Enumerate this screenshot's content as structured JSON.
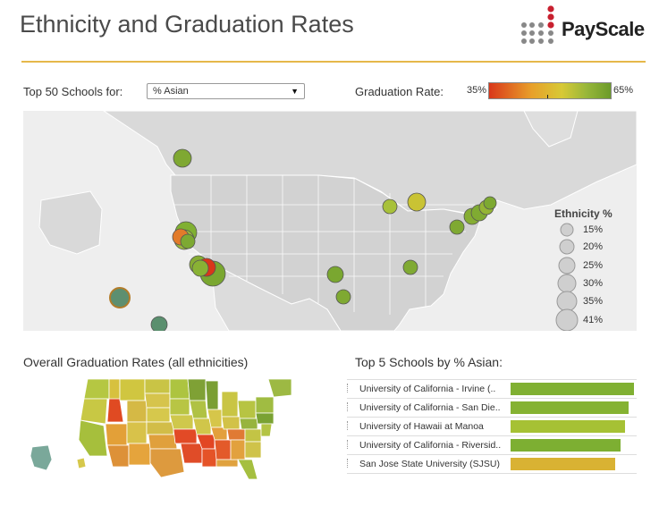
{
  "header": {
    "title": "Ethnicity and Graduation Rates",
    "logo": "PayScale"
  },
  "controls": {
    "filter_label": "Top 50 Schools for:",
    "filter_value": "% Asian",
    "grad_label": "Graduation Rate:",
    "grad_min": "35%",
    "grad_max": "65%",
    "grad_color_low": "#d9371a",
    "grad_color_high": "#6c9b2a"
  },
  "legend": {
    "title": "Ethnicity %",
    "items": [
      "15%",
      "20%",
      "25%",
      "30%",
      "35%",
      "41%"
    ]
  },
  "overall": {
    "label": "Overall Graduation Rates (all ethnicities)"
  },
  "top5": {
    "label": "Top 5 Schools by % Asian:",
    "schools": [
      {
        "name": "University of California - Irvine (..",
        "value": 1.0,
        "color": "#80b032"
      },
      {
        "name": "University of California - San Die..",
        "value": 0.96,
        "color": "#85b232"
      },
      {
        "name": "University of Hawaii at Manoa",
        "value": 0.93,
        "color": "#a6c134"
      },
      {
        "name": "University of California - Riversid..",
        "value": 0.89,
        "color": "#7daf32"
      },
      {
        "name": "San Jose State University (SJSU)",
        "value": 0.85,
        "color": "#d9b233"
      }
    ]
  }
}
